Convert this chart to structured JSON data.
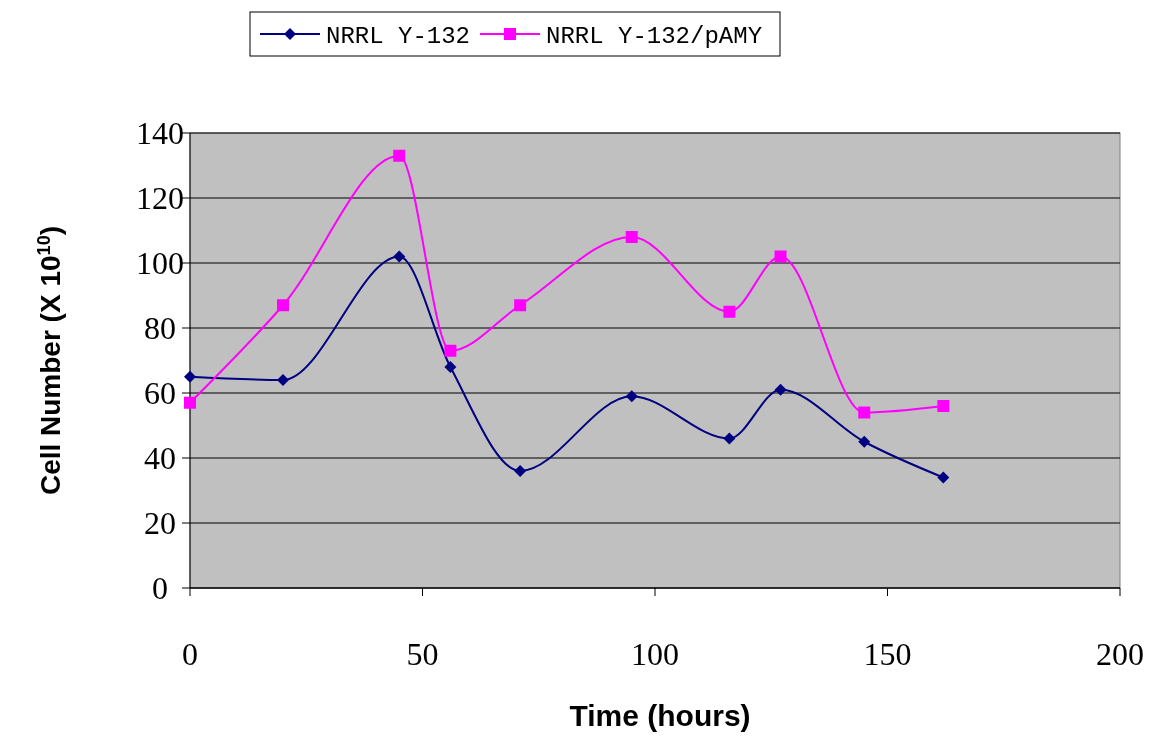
{
  "chart_data": {
    "type": "line",
    "xlabel": "Time (hours)",
    "ylabel": "Cell Number (X 10$^{10}$)",
    "x": [
      0,
      20,
      45,
      56,
      71,
      95,
      116,
      127,
      145,
      162
    ],
    "series": [
      {
        "name": "NRRL Y-132",
        "color": "#000080",
        "marker": "diamond",
        "values": [
          65,
          64,
          102,
          68,
          36,
          59,
          46,
          61,
          45,
          34
        ]
      },
      {
        "name": "NRRL Y-132/pAMY",
        "color": "#ff00ff",
        "marker": "square",
        "values": [
          57,
          87,
          133,
          73,
          87,
          108,
          85,
          102,
          54,
          56
        ]
      }
    ],
    "xlim": [
      0,
      200
    ],
    "xticks": [
      0,
      50,
      100,
      150,
      200
    ],
    "ylim": [
      0,
      140
    ],
    "yticks": [
      0,
      20,
      40,
      60,
      80,
      100,
      120,
      140
    ],
    "grid": "y",
    "legend": "top"
  }
}
